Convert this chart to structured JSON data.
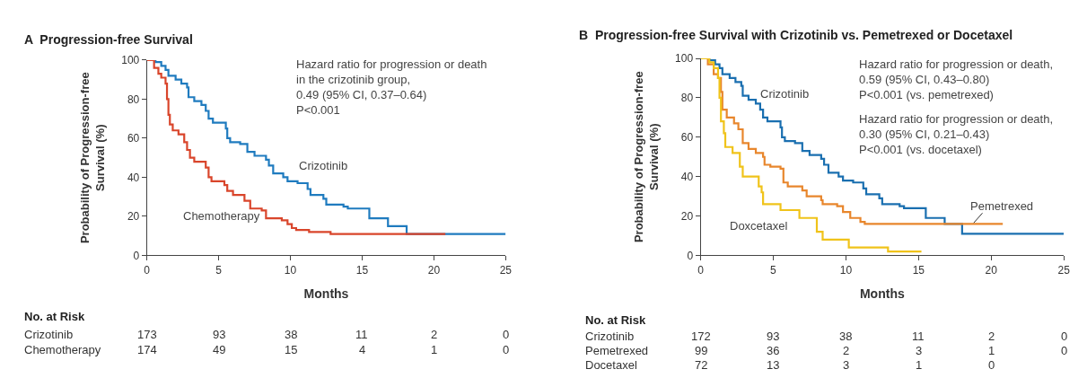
{
  "chart_data": [
    {
      "type": "step",
      "title": "A  Progression-free Survival",
      "xlabel": "Months",
      "ylabel": "Probability of Progression-free Survival (%)",
      "xlim": [
        0,
        25
      ],
      "xticks": [
        0,
        5,
        10,
        15,
        20,
        25
      ],
      "ylim": [
        0,
        100
      ],
      "yticks": [
        0,
        20,
        40,
        60,
        80,
        100
      ],
      "legend": false,
      "marker": "none",
      "line_style": "solid",
      "series": [
        {
          "name": "Crizotinib",
          "color": "#1f7bbf",
          "x": [
            0,
            0.6,
            1.0,
            1.3,
            1.5,
            2.0,
            2.4,
            2.8,
            2.9,
            3.3,
            3.8,
            4.1,
            4.3,
            4.6,
            5.5,
            5.6,
            5.8,
            6.5,
            7.0,
            7.5,
            8.3,
            8.5,
            8.8,
            9.5,
            9.8,
            10.5,
            11.2,
            11.4,
            12.3,
            12.5,
            13.7,
            14.0,
            15.5,
            16.8,
            18.1,
            25
          ],
          "values": [
            100,
            99,
            97,
            95,
            92,
            90,
            88,
            86,
            81,
            79,
            77,
            74,
            70,
            68,
            65,
            60,
            58,
            57,
            53,
            51,
            49,
            46,
            42,
            40,
            38,
            37,
            34,
            31,
            29,
            26,
            25,
            24,
            19,
            15,
            11,
            11
          ]
        },
        {
          "name": "Chemotherapy",
          "color": "#d9452b",
          "x": [
            0,
            0.5,
            0.8,
            1.0,
            1.3,
            1.4,
            1.5,
            1.6,
            1.8,
            2.2,
            2.6,
            2.8,
            3.0,
            3.3,
            4.1,
            4.3,
            4.5,
            5.4,
            5.6,
            6.0,
            6.8,
            7.2,
            8.0,
            8.3,
            9.4,
            9.8,
            10.1,
            10.4,
            11.3,
            12.8,
            20.8
          ],
          "values": [
            100,
            96,
            93,
            91,
            88,
            80,
            72,
            67,
            64,
            62,
            58,
            54,
            50,
            48,
            45,
            40,
            38,
            36,
            33,
            31,
            28,
            24,
            23,
            19,
            18,
            16,
            14,
            13,
            12,
            11,
            11
          ]
        }
      ],
      "annotations": [
        "Hazard ratio for progression or death\nin the crizotinib group,\n0.49 (95% CI, 0.37–0.64)\nP<0.001",
        "No. at Risk",
        "Crizotinib",
        "173",
        "93",
        "38",
        "11",
        "2",
        "0",
        "Chemotherapy",
        "174",
        "49",
        "15",
        "4",
        "1",
        "0"
      ]
    },
    {
      "type": "step",
      "title": "B  Progression-free Survival with Crizotinib vs. Pemetrexed or Docetaxel",
      "xlabel": "Months",
      "ylabel": "Probability of Progression-free Survival (%)",
      "xlim": [
        0,
        25
      ],
      "xticks": [
        0,
        5,
        10,
        15,
        20,
        25
      ],
      "ylim": [
        0,
        100
      ],
      "yticks": [
        0,
        20,
        40,
        60,
        80,
        100
      ],
      "legend": false,
      "marker": "none",
      "line_style": "solid",
      "series": [
        {
          "name": "Crizotinib",
          "color": "#1a6fb0",
          "x": [
            0,
            0.6,
            1.0,
            1.3,
            1.5,
            2.0,
            2.4,
            2.8,
            2.9,
            3.3,
            3.8,
            4.1,
            4.3,
            4.6,
            5.5,
            5.6,
            5.8,
            6.5,
            7.0,
            7.5,
            8.3,
            8.5,
            8.8,
            9.5,
            9.8,
            10.5,
            11.2,
            11.4,
            12.3,
            12.5,
            13.7,
            14.0,
            15.5,
            16.8,
            18.0,
            25
          ],
          "values": [
            100,
            99,
            97,
            95,
            92,
            90,
            88,
            86,
            81,
            79,
            77,
            74,
            70,
            68,
            65,
            60,
            58,
            57,
            53,
            51,
            49,
            46,
            42,
            40,
            38,
            37,
            34,
            31,
            29,
            26,
            25,
            24,
            19,
            16,
            11,
            11
          ]
        },
        {
          "name": "Pemetrexed",
          "color": "#e8862c",
          "x": [
            0,
            0.5,
            0.9,
            1.2,
            1.4,
            1.5,
            1.8,
            2.3,
            2.6,
            2.9,
            3.3,
            3.8,
            4.3,
            4.4,
            4.8,
            5.5,
            5.7,
            6.0,
            7.0,
            7.3,
            8.3,
            8.4,
            9.4,
            9.8,
            10.3,
            11.0,
            11.3,
            20.8
          ],
          "values": [
            100,
            97,
            92,
            90,
            83,
            74,
            70,
            67,
            64,
            57,
            54,
            52,
            50,
            46,
            45,
            44,
            37,
            35,
            33,
            30,
            28,
            26,
            25,
            22,
            19,
            17,
            16,
            16
          ]
        },
        {
          "name": "Doxcetaxel",
          "color": "#f0c31a",
          "x": [
            0,
            0.6,
            0.9,
            1.2,
            1.3,
            1.4,
            1.6,
            1.7,
            2.2,
            2.7,
            2.9,
            4.0,
            4.2,
            4.3,
            5.5,
            6.8,
            8.0,
            8.4,
            10.2,
            12.9,
            15.2
          ],
          "values": [
            100,
            98,
            95,
            90,
            80,
            68,
            62,
            55,
            52,
            45,
            40,
            35,
            32,
            26,
            23,
            19,
            12,
            8,
            4,
            2,
            2
          ]
        }
      ],
      "annotations": [
        "Hazard ratio for progression or death,\n0.59 (95% CI, 0.43–0.80)\nP<0.001 (vs. pemetrexed)",
        "Hazard ratio for progression or death,\n0.30 (95% CI, 0.21–0.43)\nP<0.001 (vs. docetaxel)",
        "No. at Risk",
        "Crizotinib",
        "172",
        "93",
        "38",
        "11",
        "2",
        "0",
        "Pemetrexed",
        "99",
        "36",
        "2",
        "3",
        "1",
        "0",
        "Docetaxel",
        "72",
        "13",
        "3",
        "1",
        "0"
      ]
    }
  ]
}
